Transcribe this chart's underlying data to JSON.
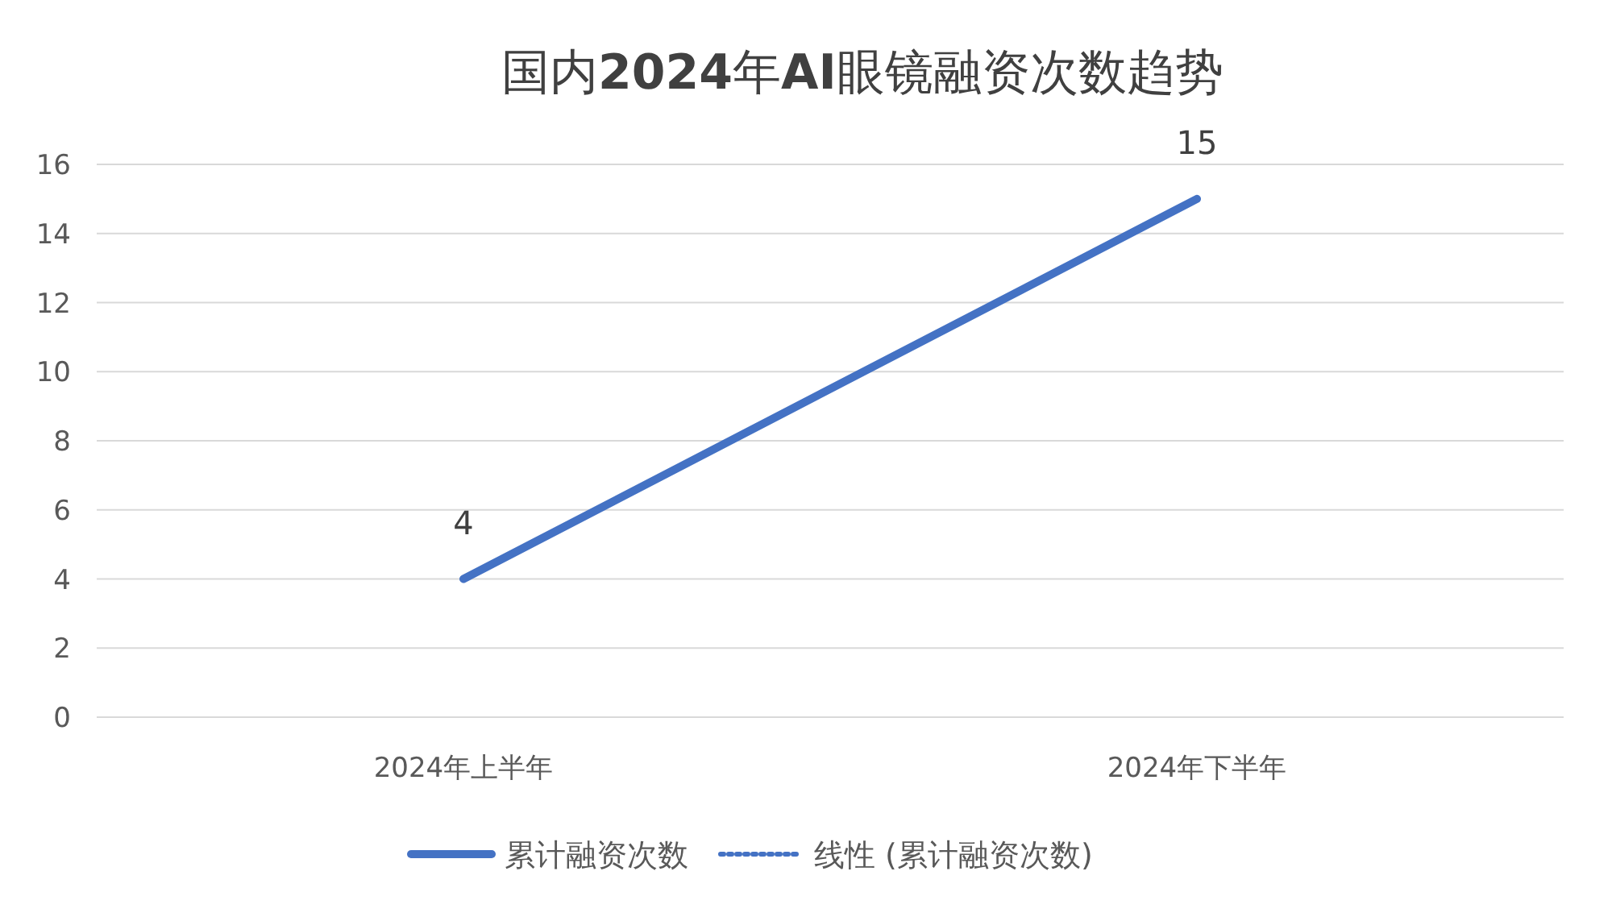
{
  "chart_data": {
    "type": "line",
    "title": "国内**2024**年**AI**眼镜融资次数趋势",
    "categories": [
      "2024年上半年",
      "2024年下半年"
    ],
    "series": [
      {
        "name": "累计融资次数",
        "color": "#4472c4",
        "values": [
          4,
          15
        ],
        "line_style": "solid"
      },
      {
        "name": "线性 (累计融资次数)",
        "color": "#4472c4",
        "values": [
          null,
          null
        ],
        "line_style": "dotted"
      }
    ],
    "ylim": [
      0,
      16
    ],
    "yticks": [
      0,
      2,
      4,
      6,
      8,
      10,
      12,
      14,
      16
    ],
    "grid": "y",
    "legend": "bottom",
    "data_labels": true,
    "marker": "none"
  }
}
